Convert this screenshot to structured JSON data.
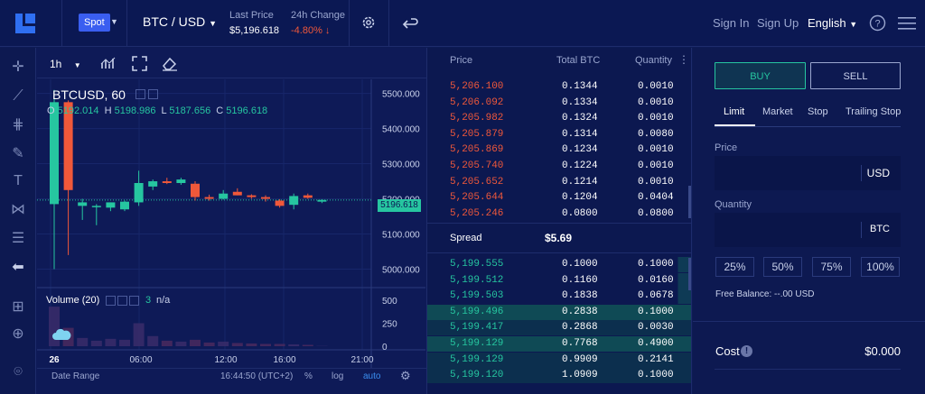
{
  "header": {
    "market_type": "Spot",
    "pair": "BTC / USD",
    "last_price_label": "Last Price",
    "last_price_value": "$5,196.618",
    "change_label": "24h Change",
    "change_value": "-4.80%",
    "nav": {
      "sign_in": "Sign In",
      "sign_up": "Sign Up",
      "language": "English"
    }
  },
  "chart": {
    "interval": "1h",
    "symbol_title": "BTCUSD, 60",
    "ohlc": {
      "o_label": "O",
      "o": "5192.014",
      "h_label": "H",
      "h": "5198.986",
      "l_label": "L",
      "l": "5187.656",
      "c_label": "C",
      "c": "5196.618"
    },
    "current_price_tag": "5196.618",
    "volume_label": "Volume (20)",
    "volume_value": "3",
    "volume_na": "n/a",
    "x_labels": [
      "26",
      "06:00",
      "12:00",
      "16:00",
      "21:00"
    ],
    "bottom": {
      "date_range": "Date Range",
      "time": "16:44:50 (UTC+2)",
      "pct": "%",
      "log": "log",
      "auto": "auto"
    }
  },
  "chart_data": {
    "type": "candlestick",
    "y_axis_ticks": [
      "5500.000",
      "5400.000",
      "5300.000",
      "5200.000",
      "5100.000",
      "5000.000"
    ],
    "volume_axis_ticks": [
      "500",
      "250",
      "0"
    ],
    "candles": [
      {
        "o": 5185,
        "h": 5510,
        "l": 5000,
        "c": 5475
      },
      {
        "o": 5475,
        "h": 5480,
        "l": 5040,
        "c": 5225
      },
      {
        "o": 5180,
        "h": 5200,
        "l": 5140,
        "c": 5190
      },
      {
        "o": 5180,
        "h": 5185,
        "l": 5125,
        "c": 5180
      },
      {
        "o": 5175,
        "h": 5190,
        "l": 5165,
        "c": 5190
      },
      {
        "o": 5170,
        "h": 5195,
        "l": 5165,
        "c": 5192
      },
      {
        "o": 5190,
        "h": 5280,
        "l": 5180,
        "c": 5245
      },
      {
        "o": 5235,
        "h": 5255,
        "l": 5225,
        "c": 5250
      },
      {
        "o": 5250,
        "h": 5260,
        "l": 5242,
        "c": 5245
      },
      {
        "o": 5245,
        "h": 5260,
        "l": 5240,
        "c": 5255
      },
      {
        "o": 5243,
        "h": 5250,
        "l": 5195,
        "c": 5205
      },
      {
        "o": 5205,
        "h": 5212,
        "l": 5195,
        "c": 5200
      },
      {
        "o": 5200,
        "h": 5225,
        "l": 5198,
        "c": 5215
      },
      {
        "o": 5220,
        "h": 5230,
        "l": 5210,
        "c": 5210
      },
      {
        "o": 5210,
        "h": 5213,
        "l": 5200,
        "c": 5205
      },
      {
        "o": 5205,
        "h": 5210,
        "l": 5192,
        "c": 5200
      },
      {
        "o": 5195,
        "h": 5199,
        "l": 5175,
        "c": 5180
      },
      {
        "o": 5183,
        "h": 5215,
        "l": 5170,
        "c": 5208
      },
      {
        "o": 5210,
        "h": 5215,
        "l": 5200,
        "c": 5203
      },
      {
        "o": 5192,
        "h": 5199,
        "l": 5188,
        "c": 5197
      }
    ],
    "volumes": [
      430,
      200,
      90,
      60,
      80,
      70,
      250,
      110,
      60,
      50,
      70,
      40,
      50,
      35,
      30,
      25,
      25,
      20,
      15,
      3
    ]
  },
  "orderbook": {
    "headers": {
      "price": "Price",
      "total": "Total BTC",
      "qty": "Quantity"
    },
    "asks": [
      {
        "price": "5,206.100",
        "total": "0.1344",
        "qty": "0.0010"
      },
      {
        "price": "5,206.092",
        "total": "0.1334",
        "qty": "0.0010"
      },
      {
        "price": "5,205.982",
        "total": "0.1324",
        "qty": "0.0010"
      },
      {
        "price": "5,205.879",
        "total": "0.1314",
        "qty": "0.0080"
      },
      {
        "price": "5,205.869",
        "total": "0.1234",
        "qty": "0.0010"
      },
      {
        "price": "5,205.740",
        "total": "0.1224",
        "qty": "0.0010"
      },
      {
        "price": "5,205.652",
        "total": "0.1214",
        "qty": "0.0010"
      },
      {
        "price": "5,205.644",
        "total": "0.1204",
        "qty": "0.0404"
      },
      {
        "price": "5,205.246",
        "total": "0.0800",
        "qty": "0.0800"
      }
    ],
    "spread_label": "Spread",
    "spread_value": "$5.69",
    "bids": [
      {
        "price": "5,199.555",
        "total": "0.1000",
        "qty": "0.1000"
      },
      {
        "price": "5,199.512",
        "total": "0.1160",
        "qty": "0.0160"
      },
      {
        "price": "5,199.503",
        "total": "0.1838",
        "qty": "0.0678"
      },
      {
        "price": "5,199.496",
        "total": "0.2838",
        "qty": "0.1000"
      },
      {
        "price": "5,199.417",
        "total": "0.2868",
        "qty": "0.0030"
      },
      {
        "price": "5,199.129",
        "total": "0.7768",
        "qty": "0.4900"
      },
      {
        "price": "5,199.129",
        "total": "0.9909",
        "qty": "0.2141"
      },
      {
        "price": "5,199.120",
        "total": "1.0909",
        "qty": "0.1000"
      }
    ]
  },
  "order_form": {
    "buy": "BUY",
    "sell": "SELL",
    "tabs": [
      "Limit",
      "Market",
      "Stop",
      "Trailing Stop"
    ],
    "price_label": "Price",
    "price_unit": "USD",
    "qty_label": "Quantity",
    "qty_unit": "BTC",
    "pcts": [
      "25%",
      "50%",
      "75%",
      "100%"
    ],
    "free_balance_label": "Free Balance:",
    "free_balance_value": "--.00 USD",
    "cost_label": "Cost",
    "cost_value": "$0.000"
  },
  "colors": {
    "up": "#26c6a0",
    "down": "#f0583a",
    "accent": "#3a5ef0"
  }
}
